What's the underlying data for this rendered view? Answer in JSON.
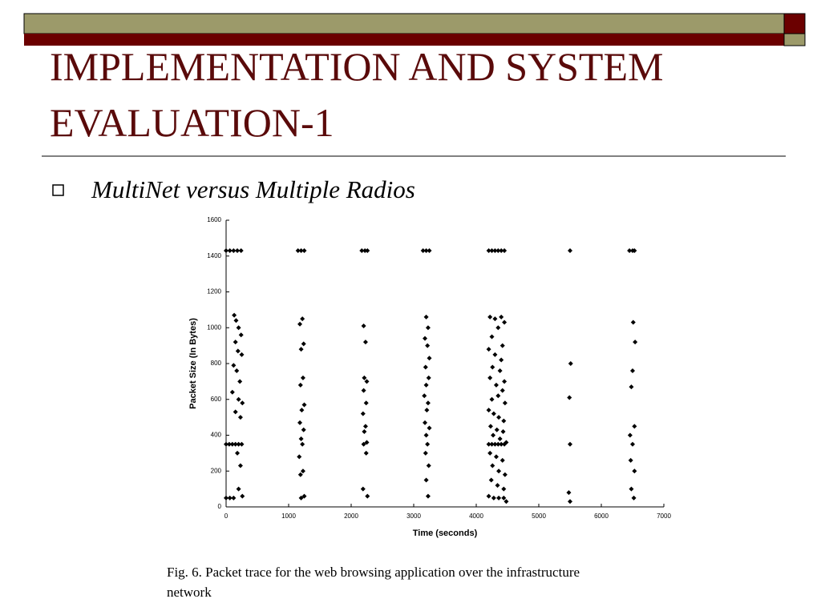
{
  "slide": {
    "title_line1": "IMPLEMENTATION AND SYSTEM",
    "title_line2": "EVALUATION-1",
    "bullet": "MultiNet versus Multiple Radios",
    "caption_line1": "Fig. 6.   Packet trace for the web browsing application over the infrastructure",
    "caption_line2": "network"
  },
  "chart_data": {
    "type": "scatter",
    "xlabel": "Time (seconds)",
    "ylabel": "Packet Size (In Bytes)",
    "xlim": [
      0,
      7000
    ],
    "xticks": [
      0,
      1000,
      2000,
      3000,
      4000,
      5000,
      6000,
      7000
    ],
    "ylim": [
      0,
      1600
    ],
    "yticks": [
      0,
      200,
      400,
      600,
      800,
      1000,
      1200,
      1400,
      1600
    ],
    "color": "#000000",
    "x": [
      0,
      60,
      120,
      180,
      240,
      130,
      160,
      200,
      240,
      150,
      190,
      250,
      120,
      170,
      220,
      100,
      200,
      260,
      150,
      230,
      0,
      50,
      100,
      150,
      200,
      250,
      180,
      230,
      0,
      60,
      120,
      200,
      260,
      1150,
      1200,
      1250,
      1220,
      1180,
      1240,
      1200,
      1230,
      1190,
      1250,
      1210,
      1180,
      1240,
      1200,
      1220,
      1170,
      1230,
      1190,
      1250,
      1200,
      2170,
      2220,
      2260,
      2200,
      2230,
      2210,
      2250,
      2200,
      2240,
      2190,
      2230,
      2210,
      2250,
      2200,
      2240,
      2190,
      2260,
      3150,
      3200,
      3250,
      3200,
      3230,
      3180,
      3220,
      3250,
      3190,
      3240,
      3200,
      3170,
      3230,
      3210,
      3180,
      3250,
      3200,
      3220,
      3190,
      3240,
      3200,
      3230,
      4200,
      4250,
      4300,
      4350,
      4400,
      4450,
      4220,
      4300,
      4400,
      4450,
      4250,
      4350,
      4420,
      4200,
      4300,
      4400,
      4260,
      4380,
      4450,
      4220,
      4320,
      4420,
      4250,
      4350,
      4460,
      4200,
      4280,
      4360,
      4440,
      4230,
      4330,
      4430,
      4270,
      4380,
      4480,
      4200,
      4250,
      4300,
      4350,
      4400,
      4450,
      4220,
      4320,
      4420,
      4260,
      4360,
      4460,
      4240,
      4340,
      4440,
      4200,
      4280,
      4360,
      4440,
      4480,
      5500,
      5510,
      5490,
      5500,
      5480,
      5500,
      6450,
      6500,
      6530,
      6510,
      6540,
      6500,
      6480,
      6530,
      6460,
      6500,
      6470,
      6530,
      6480,
      6520
    ],
    "values": [
      1430,
      1430,
      1430,
      1430,
      1430,
      1070,
      1040,
      1000,
      960,
      920,
      870,
      850,
      790,
      760,
      700,
      640,
      600,
      580,
      530,
      500,
      350,
      350,
      350,
      350,
      350,
      350,
      300,
      230,
      50,
      50,
      50,
      100,
      60,
      1430,
      1430,
      1430,
      1050,
      1020,
      910,
      880,
      720,
      680,
      570,
      540,
      470,
      430,
      380,
      350,
      280,
      200,
      180,
      60,
      50,
      1430,
      1430,
      1430,
      1010,
      920,
      720,
      700,
      650,
      580,
      520,
      450,
      420,
      360,
      350,
      300,
      100,
      60,
      1430,
      1430,
      1430,
      1060,
      1000,
      940,
      900,
      830,
      780,
      720,
      680,
      620,
      580,
      540,
      470,
      440,
      400,
      350,
      300,
      230,
      150,
      60,
      1430,
      1430,
      1430,
      1430,
      1430,
      1430,
      1060,
      1050,
      1060,
      1030,
      950,
      1000,
      900,
      880,
      850,
      820,
      780,
      760,
      700,
      720,
      680,
      650,
      600,
      620,
      580,
      540,
      520,
      500,
      480,
      450,
      430,
      420,
      400,
      380,
      360,
      350,
      350,
      350,
      350,
      350,
      350,
      300,
      280,
      260,
      230,
      200,
      180,
      150,
      120,
      100,
      60,
      50,
      50,
      50,
      30,
      1430,
      800,
      610,
      350,
      80,
      30,
      1430,
      1430,
      1430,
      1030,
      920,
      760,
      670,
      450,
      400,
      350,
      260,
      200,
      100,
      50
    ]
  }
}
